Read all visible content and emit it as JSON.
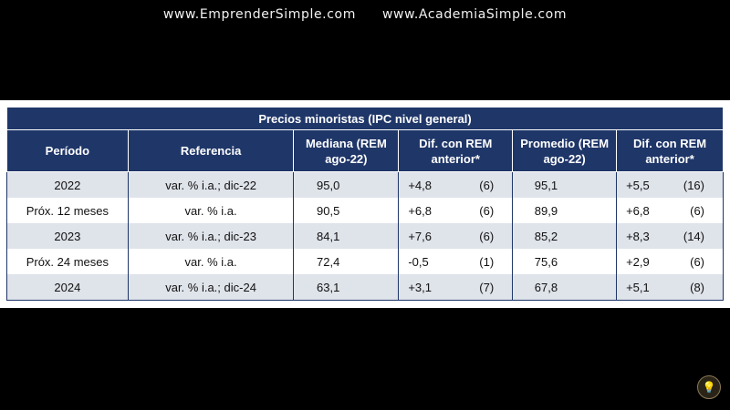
{
  "watermark": {
    "left": "www.EmprenderSimple.com",
    "right": "www.AcademiaSimple.com"
  },
  "table": {
    "title": "Precios minoristas (IPC nivel general)",
    "headers": {
      "periodo": "Período",
      "referencia": "Referencia",
      "mediana": "Mediana (REM ago-22)",
      "dif_mediana": "Dif. con REM anterior*",
      "promedio": "Promedio (REM ago-22)",
      "dif_promedio": "Dif. con REM anterior*"
    },
    "rows": [
      {
        "periodo": "2022",
        "referencia": "var. % i.a.; dic-22",
        "mediana": "95,0",
        "dif_mediana": "+4,8",
        "dif_mediana_n": "(6)",
        "promedio": "95,1",
        "dif_promedio": "+5,5",
        "dif_promedio_n": "(16)"
      },
      {
        "periodo": "Próx. 12 meses",
        "referencia": "var. % i.a.",
        "mediana": "90,5",
        "dif_mediana": "+6,8",
        "dif_mediana_n": "(6)",
        "promedio": "89,9",
        "dif_promedio": "+6,8",
        "dif_promedio_n": "(6)"
      },
      {
        "periodo": "2023",
        "referencia": "var. % i.a.; dic-23",
        "mediana": "84,1",
        "dif_mediana": "+7,6",
        "dif_mediana_n": "(6)",
        "promedio": "85,2",
        "dif_promedio": "+8,3",
        "dif_promedio_n": "(14)"
      },
      {
        "periodo": "Próx. 24 meses",
        "referencia": "var. % i.a.",
        "mediana": "72,4",
        "dif_mediana": "-0,5",
        "dif_mediana_n": "(1)",
        "promedio": "75,6",
        "dif_promedio": "+2,9",
        "dif_promedio_n": "(6)"
      },
      {
        "periodo": "2024",
        "referencia": "var. % i.a.; dic-24",
        "mediana": "63,1",
        "dif_mediana": "+3,1",
        "dif_mediana_n": "(7)",
        "promedio": "67,8",
        "dif_promedio": "+5,1",
        "dif_promedio_n": "(8)"
      }
    ]
  },
  "colors": {
    "header_bg": "#1f3668",
    "stripe_bg": "#dfe3ea",
    "background": "#000000"
  },
  "badge_icon": "bulb-logo-icon"
}
